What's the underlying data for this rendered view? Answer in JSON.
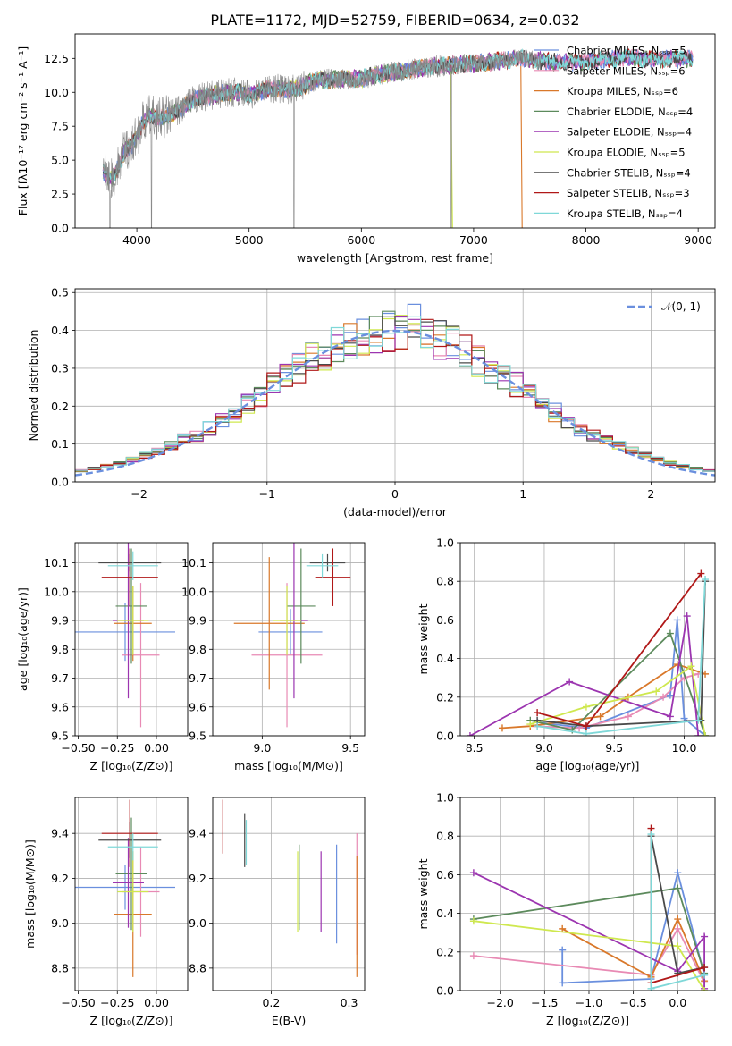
{
  "figure": {
    "title": "PLATE=1172, MJD=52759, FIBERID=0634, z=0.032"
  },
  "colors": {
    "Chabrier MILES": "#6a8fde",
    "Salpeter MILES": "#e88ab4",
    "Kroupa MILES": "#d9782a",
    "Chabrier ELODIE": "#5c8a5c",
    "Salpeter ELODIE": "#9c35b0",
    "Kroupa ELODIE": "#cfe84f",
    "Chabrier STELIB": "#4a4a4a",
    "Salpeter STELIB": "#b01818",
    "Kroupa STELIB": "#7fd8d8",
    "observed_spectrum": "#888888",
    "normal_curve": "#6a8fde"
  },
  "chart_data": [
    {
      "type": "line",
      "panel": "spectrum",
      "xlabel": "wavelength [Angstrom, rest frame]",
      "ylabel": "Flux [fλ10⁻¹⁷ erg cm⁻² s⁻¹ A⁻¹]",
      "xlim": [
        3450,
        9150
      ],
      "ylim": [
        0,
        14.3
      ],
      "xticks": [
        4000,
        5000,
        6000,
        7000,
        8000,
        9000
      ],
      "yticks": [
        0.0,
        2.5,
        5.0,
        7.5,
        10.0,
        12.5
      ],
      "legend_position": "right",
      "legend": [
        {
          "label": "Chabrier MILES, Nₛₛₚ=5",
          "color_key": "Chabrier MILES"
        },
        {
          "label": "Salpeter MILES, Nₛₛₚ=6",
          "color_key": "Salpeter MILES"
        },
        {
          "label": "Kroupa MILES, Nₛₛₚ=6",
          "color_key": "Kroupa MILES"
        },
        {
          "label": "Chabrier ELODIE, Nₛₛₚ=4",
          "color_key": "Chabrier ELODIE"
        },
        {
          "label": "Salpeter ELODIE, Nₛₛₚ=4",
          "color_key": "Salpeter ELODIE"
        },
        {
          "label": "Kroupa ELODIE, Nₛₛₚ=5",
          "color_key": "Kroupa ELODIE"
        },
        {
          "label": "Chabrier STELIB, Nₛₛₚ=4",
          "color_key": "Chabrier STELIB"
        },
        {
          "label": "Salpeter STELIB, Nₛₛₚ=3",
          "color_key": "Salpeter STELIB"
        },
        {
          "label": "Kroupa STELIB, Nₛₛₚ=4",
          "color_key": "Kroupa STELIB"
        }
      ],
      "model_continuum": {
        "x": [
          3700,
          3750,
          3800,
          3850,
          3900,
          3950,
          4000,
          4050,
          4100,
          4150,
          4200,
          4300,
          4400,
          4500,
          4600,
          4700,
          4800,
          4900,
          5000,
          5200,
          5400,
          5600,
          5800,
          6000,
          6200,
          6400,
          6600,
          6800,
          7000,
          7200,
          7400,
          7600,
          7800,
          8000,
          8200,
          8400,
          8600,
          8800,
          8900
        ],
        "y": [
          4.2,
          3.6,
          3.8,
          4.9,
          5.8,
          6.0,
          6.8,
          7.7,
          8.2,
          8.2,
          8.0,
          8.4,
          8.8,
          9.4,
          9.7,
          9.8,
          10.0,
          10.0,
          9.8,
          10.3,
          10.2,
          10.9,
          11.0,
          11.0,
          11.4,
          11.6,
          11.9,
          12.0,
          12.1,
          12.3,
          12.5,
          12.3,
          12.2,
          12.3,
          12.4,
          12.6,
          12.4,
          12.5,
          12.5
        ]
      },
      "model_edges": [
        {
          "model": "Kroupa ELODIE",
          "x_end": 6800
        },
        {
          "model": "Kroupa MILES",
          "x_end": 7420
        }
      ]
    },
    {
      "type": "histogram",
      "panel": "residuals",
      "xlabel": "(data-model)/error",
      "ylabel": "Normed distribution",
      "xlim": [
        -2.5,
        2.5
      ],
      "ylim": [
        0,
        0.51
      ],
      "xticks": [
        -2,
        -1,
        0,
        1,
        2
      ],
      "yticks": [
        0.0,
        0.1,
        0.2,
        0.3,
        0.4,
        0.5
      ],
      "legend_position": "top-right",
      "legend": [
        {
          "label": "𝒩(0, 1)",
          "color_key": "normal_curve"
        }
      ],
      "bin_edges_from": -2.5,
      "bin_width": 0.1,
      "normal_curve": {
        "mu": 0,
        "sigma": 1
      }
    },
    {
      "type": "errorbar",
      "panel": "age-vs-Z",
      "xlabel": "Z [log₁₀(Z/Z⊙)]",
      "ylabel": "age  [log₁₀(age/yr)]",
      "xlim": [
        -0.52,
        0.2
      ],
      "ylim": [
        9.5,
        10.17
      ],
      "xticks": [
        -0.5,
        -0.25,
        0.0
      ],
      "yticks": [
        9.5,
        9.6,
        9.7,
        9.8,
        9.9,
        10.0,
        10.1
      ],
      "points": [
        {
          "model": "Chabrier MILES",
          "x": -0.2,
          "xerr": 0.32,
          "y": 9.86,
          "yerr": 0.1
        },
        {
          "model": "Salpeter MILES",
          "x": -0.1,
          "xerr": 0.12,
          "y": 9.78,
          "yerr": 0.25
        },
        {
          "model": "Kroupa MILES",
          "x": -0.15,
          "xerr": 0.12,
          "y": 9.89,
          "yerr": 0.13
        },
        {
          "model": "Chabrier ELODIE",
          "x": -0.16,
          "xerr": 0.1,
          "y": 9.95,
          "yerr": 0.2
        },
        {
          "model": "Salpeter ELODIE",
          "x": -0.18,
          "xerr": 0.1,
          "y": 9.9,
          "yerr": 0.27
        },
        {
          "model": "Kroupa ELODIE",
          "x": -0.15,
          "xerr": 0.1,
          "y": 9.9,
          "yerr": 0.12
        },
        {
          "model": "Chabrier STELIB",
          "x": -0.17,
          "xerr": 0.2,
          "y": 10.1,
          "yerr": 0.03
        },
        {
          "model": "Salpeter STELIB",
          "x": -0.17,
          "xerr": 0.18,
          "y": 10.05,
          "yerr": 0.1
        },
        {
          "model": "Kroupa STELIB",
          "x": -0.15,
          "xerr": 0.16,
          "y": 10.09,
          "yerr": 0.05
        }
      ]
    },
    {
      "type": "errorbar",
      "panel": "age-vs-mass",
      "xlabel": "mass [log₁₀(M/M⊙)]",
      "ylabel": "",
      "xlim": [
        8.72,
        9.58
      ],
      "ylim": [
        9.5,
        10.17
      ],
      "xticks": [
        9.0,
        9.5
      ],
      "yticks": [
        9.5,
        9.6,
        9.7,
        9.8,
        9.9,
        10.0,
        10.1
      ],
      "points": [
        {
          "model": "Chabrier MILES",
          "x": 9.16,
          "xerr": 0.18,
          "y": 9.86,
          "yerr": 0.08
        },
        {
          "model": "Salpeter MILES",
          "x": 9.14,
          "xerr": 0.2,
          "y": 9.78,
          "yerr": 0.25
        },
        {
          "model": "Kroupa MILES",
          "x": 9.04,
          "xerr": 0.2,
          "y": 9.89,
          "yerr": 0.23
        },
        {
          "model": "Chabrier ELODIE",
          "x": 9.22,
          "xerr": 0.08,
          "y": 9.95,
          "yerr": 0.2
        },
        {
          "model": "Salpeter ELODIE",
          "x": 9.18,
          "xerr": 0.08,
          "y": 9.9,
          "yerr": 0.27
        },
        {
          "model": "Kroupa ELODIE",
          "x": 9.14,
          "xerr": 0.08,
          "y": 9.9,
          "yerr": 0.12
        },
        {
          "model": "Chabrier STELIB",
          "x": 9.37,
          "xerr": 0.1,
          "y": 10.1,
          "yerr": 0.03
        },
        {
          "model": "Salpeter STELIB",
          "x": 9.4,
          "xerr": 0.1,
          "y": 10.05,
          "yerr": 0.1
        },
        {
          "model": "Kroupa STELIB",
          "x": 9.34,
          "xerr": 0.09,
          "y": 10.09,
          "yerr": 0.04
        }
      ]
    },
    {
      "type": "line",
      "panel": "weight-vs-age",
      "xlabel": "age  [log₁₀(age/yr)]",
      "ylabel": "mass weight",
      "xlim": [
        8.4,
        10.22
      ],
      "ylim": [
        0,
        1.0
      ],
      "xticks": [
        8.5,
        9.0,
        9.5,
        10.0
      ],
      "yticks": [
        0.0,
        0.2,
        0.4,
        0.6,
        0.8,
        1.0
      ],
      "series": [
        {
          "model": "Chabrier MILES",
          "x": [
            8.95,
            9.3,
            9.9,
            9.95,
            10.0,
            10.15
          ],
          "y": [
            0.07,
            0.04,
            0.21,
            0.6,
            0.09,
            0.0
          ]
        },
        {
          "model": "Salpeter MILES",
          "x": [
            8.9,
            9.25,
            9.6,
            9.85,
            10.0,
            10.1
          ],
          "y": [
            0.05,
            0.04,
            0.1,
            0.2,
            0.3,
            0.32
          ]
        },
        {
          "model": "Kroupa MILES",
          "x": [
            8.7,
            8.9,
            9.4,
            9.6,
            9.95,
            10.15
          ],
          "y": [
            0.04,
            0.05,
            0.1,
            0.2,
            0.37,
            0.32
          ]
        },
        {
          "model": "Chabrier ELODIE",
          "x": [
            8.9,
            9.2,
            9.9,
            10.15
          ],
          "y": [
            0.08,
            0.03,
            0.53,
            0.0
          ]
        },
        {
          "model": "Salpeter ELODIE",
          "x": [
            8.47,
            9.18,
            9.9,
            10.02,
            10.1
          ],
          "y": [
            0.0,
            0.28,
            0.1,
            0.62,
            0.0
          ]
        },
        {
          "model": "Kroupa ELODIE",
          "x": [
            8.9,
            9.3,
            9.8,
            10.05,
            10.15
          ],
          "y": [
            0.06,
            0.15,
            0.23,
            0.36,
            0.0
          ]
        },
        {
          "model": "Chabrier STELIB",
          "x": [
            8.95,
            9.3,
            10.12,
            10.15
          ],
          "y": [
            0.08,
            0.05,
            0.08,
            0.8
          ]
        },
        {
          "model": "Salpeter STELIB",
          "x": [
            8.95,
            9.3,
            10.12
          ],
          "y": [
            0.12,
            0.05,
            0.84
          ]
        },
        {
          "model": "Kroupa STELIB",
          "x": [
            8.95,
            9.3,
            10.1,
            10.15
          ],
          "y": [
            0.05,
            0.01,
            0.08,
            0.81
          ]
        }
      ]
    },
    {
      "type": "errorbar",
      "panel": "mass-vs-Z",
      "xlabel": "Z [log₁₀(Z/Z⊙)]",
      "ylabel": "mass [log₁₀(M/M⊙)]",
      "xlim": [
        -0.52,
        0.2
      ],
      "ylim": [
        8.7,
        9.56
      ],
      "xticks": [
        -0.5,
        -0.25,
        0.0
      ],
      "yticks": [
        8.8,
        9.0,
        9.2,
        9.4
      ],
      "points": [
        {
          "model": "Chabrier MILES",
          "x": -0.2,
          "xerr": 0.32,
          "y": 9.16,
          "yerr": 0.1
        },
        {
          "model": "Salpeter MILES",
          "x": -0.1,
          "xerr": 0.12,
          "y": 9.14,
          "yerr": 0.2
        },
        {
          "model": "Kroupa MILES",
          "x": -0.15,
          "xerr": 0.12,
          "y": 9.04,
          "yerr": 0.28
        },
        {
          "model": "Chabrier ELODIE",
          "x": -0.16,
          "xerr": 0.1,
          "y": 9.22,
          "yerr": 0.25
        },
        {
          "model": "Salpeter ELODIE",
          "x": -0.18,
          "xerr": 0.1,
          "y": 9.18,
          "yerr": 0.2
        },
        {
          "model": "Kroupa ELODIE",
          "x": -0.15,
          "xerr": 0.1,
          "y": 9.14,
          "yerr": 0.18
        },
        {
          "model": "Chabrier STELIB",
          "x": -0.17,
          "xerr": 0.2,
          "y": 9.37,
          "yerr": 0.08
        },
        {
          "model": "Salpeter STELIB",
          "x": -0.17,
          "xerr": 0.18,
          "y": 9.4,
          "yerr": 0.15
        },
        {
          "model": "Kroupa STELIB",
          "x": -0.15,
          "xerr": 0.16,
          "y": 9.34,
          "yerr": 0.06
        }
      ]
    },
    {
      "type": "errorbar",
      "panel": "mass-vs-EBV",
      "xlabel": "E(B-V)",
      "ylabel": "",
      "xlim": [
        0.125,
        0.32
      ],
      "ylim": [
        8.7,
        9.56
      ],
      "xticks": [
        0.2,
        0.3
      ],
      "yticks": [
        8.8,
        9.0,
        9.2,
        9.4
      ],
      "points": [
        {
          "model": "Chabrier MILES",
          "x": 0.284,
          "y": 9.13,
          "yerr": 0.22
        },
        {
          "model": "Salpeter MILES",
          "x": 0.31,
          "y": 9.13,
          "yerr": 0.27
        },
        {
          "model": "Kroupa MILES",
          "x": 0.31,
          "y": 9.03,
          "yerr": 0.27
        },
        {
          "model": "Chabrier ELODIE",
          "x": 0.236,
          "y": 9.16,
          "yerr": 0.19
        },
        {
          "model": "Salpeter ELODIE",
          "x": 0.264,
          "y": 9.14,
          "yerr": 0.18
        },
        {
          "model": "Kroupa ELODIE",
          "x": 0.234,
          "y": 9.14,
          "yerr": 0.18
        },
        {
          "model": "Chabrier STELIB",
          "x": 0.166,
          "y": 9.37,
          "yerr": 0.12
        },
        {
          "model": "Salpeter STELIB",
          "x": 0.138,
          "y": 9.43,
          "yerr": 0.12
        },
        {
          "model": "Kroupa STELIB",
          "x": 0.168,
          "y": 9.36,
          "yerr": 0.1
        }
      ]
    },
    {
      "type": "line",
      "panel": "weight-vs-Z",
      "xlabel": "Z [log₁₀(Z/Z⊙)]",
      "ylabel": "mass weight",
      "xlim": [
        -2.45,
        0.42
      ],
      "ylim": [
        0,
        1.0
      ],
      "xticks": [
        -2.0,
        -1.5,
        -1.0,
        -0.5,
        0.0
      ],
      "yticks": [
        0.0,
        0.2,
        0.4,
        0.6,
        0.8,
        1.0
      ],
      "series": [
        {
          "model": "Chabrier MILES",
          "x": [
            -1.3,
            -1.3,
            -0.3,
            0.0,
            0.3
          ],
          "y": [
            0.21,
            0.04,
            0.06,
            0.61,
            0.08
          ]
        },
        {
          "model": "Salpeter MILES",
          "x": [
            -2.3,
            -0.3,
            0.0,
            0.3
          ],
          "y": [
            0.18,
            0.08,
            0.32,
            0.04
          ]
        },
        {
          "model": "Kroupa MILES",
          "x": [
            -1.3,
            -0.3,
            0.0,
            0.3
          ],
          "y": [
            0.32,
            0.07,
            0.37,
            0.05
          ]
        },
        {
          "model": "Chabrier ELODIE",
          "x": [
            -2.3,
            0.0,
            0.3
          ],
          "y": [
            0.37,
            0.53,
            0.09
          ]
        },
        {
          "model": "Salpeter ELODIE",
          "x": [
            -2.3,
            0.0,
            0.3,
            0.3
          ],
          "y": [
            0.61,
            0.1,
            0.28,
            0.01
          ]
        },
        {
          "model": "Kroupa ELODIE",
          "x": [
            -2.3,
            0.0,
            0.3
          ],
          "y": [
            0.36,
            0.23,
            0.0
          ]
        },
        {
          "model": "Chabrier STELIB",
          "x": [
            -0.3,
            0.0,
            0.3
          ],
          "y": [
            0.8,
            0.09,
            0.12
          ]
        },
        {
          "model": "Salpeter STELIB",
          "x": [
            -0.3,
            -0.3,
            0.3
          ],
          "y": [
            0.84,
            0.04,
            0.12
          ]
        },
        {
          "model": "Kroupa STELIB",
          "x": [
            -0.3,
            -0.3,
            0.3
          ],
          "y": [
            0.81,
            0.01,
            0.08
          ]
        }
      ]
    }
  ]
}
